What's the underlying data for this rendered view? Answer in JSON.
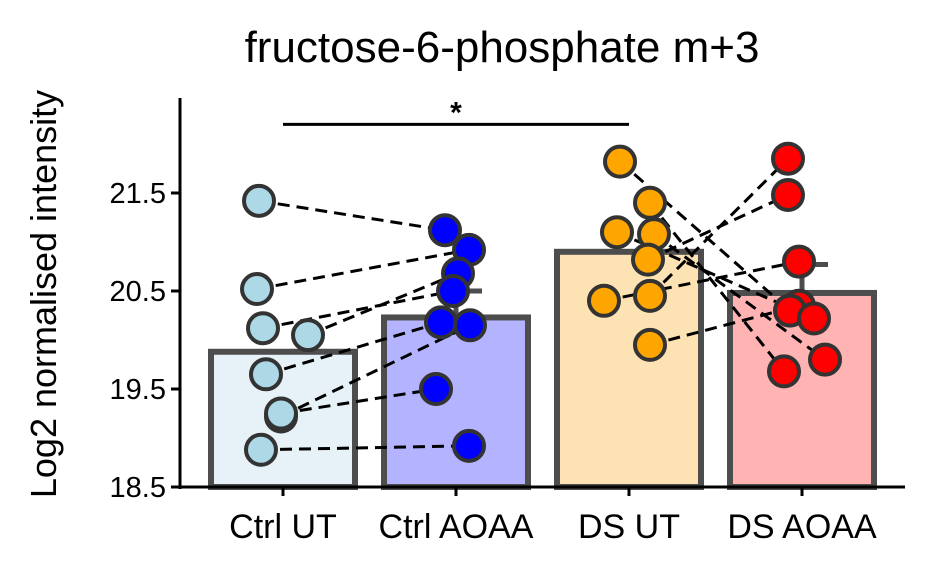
{
  "chart_data": {
    "type": "bar",
    "title": "fructose-6-phosphate m+3",
    "xlabel": "",
    "ylabel": "Log2 normalised intensity",
    "ylim": [
      18.5,
      22.5
    ],
    "yticks": [
      18.5,
      19.5,
      20.5,
      21.5
    ],
    "grid": false,
    "legend": "none",
    "categories": [
      "Ctrl UT",
      "Ctrl AOAA",
      "DS UT",
      "DS AOAA"
    ],
    "means": [
      19.88,
      20.23,
      20.9,
      20.48
    ],
    "error_upper": [
      19.88,
      20.5,
      20.9,
      20.77
    ],
    "bar_fill_colors": [
      "#e6f2f8",
      "#b3b3ff",
      "#fde2b3",
      "#ffb3b3"
    ],
    "point_colors": [
      "#add8e6",
      "#0000ff",
      "#ffa500",
      "#ff0000"
    ],
    "bar_edge_color": "#4d4d4d",
    "points": [
      [
        21.42,
        20.52,
        20.12,
        20.05,
        19.65,
        19.22,
        19.25,
        18.88
      ],
      [
        21.12,
        20.92,
        20.68,
        20.5,
        20.18,
        20.15,
        19.5,
        18.92
      ],
      [
        21.82,
        21.4,
        21.1,
        21.08,
        20.82,
        20.45,
        20.4,
        19.95
      ],
      [
        21.85,
        21.48,
        20.8,
        20.35,
        20.3,
        20.22,
        19.8,
        19.68
      ]
    ],
    "pairs": [
      [
        21.42,
        21.12
      ],
      [
        20.52,
        20.92
      ],
      [
        20.12,
        20.5
      ],
      [
        20.05,
        20.68
      ],
      [
        19.65,
        20.18
      ],
      [
        19.22,
        20.15
      ],
      [
        19.25,
        19.5
      ],
      [
        18.88,
        18.92
      ],
      [
        21.82,
        20.3
      ],
      [
        21.4,
        19.68
      ],
      [
        21.1,
        20.22
      ],
      [
        21.08,
        19.8
      ],
      [
        20.82,
        21.48
      ],
      [
        20.45,
        21.85
      ],
      [
        20.4,
        20.8
      ],
      [
        19.95,
        20.35
      ]
    ],
    "annotations": [
      {
        "text": "*",
        "from": "Ctrl UT",
        "to": "DS UT",
        "y": 22.2
      }
    ]
  }
}
